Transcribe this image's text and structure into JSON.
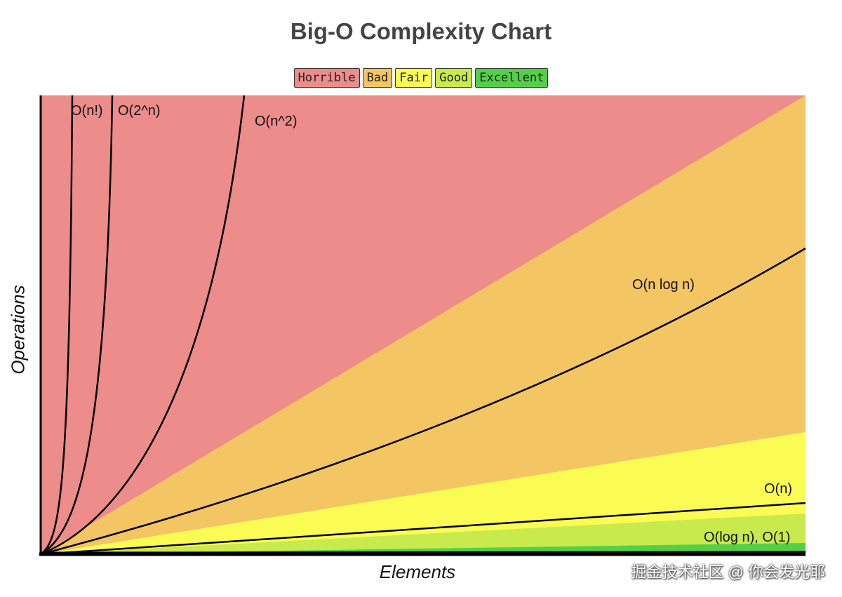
{
  "watermark": "掘金技术社区 @ 你会发光耶",
  "chart_data": {
    "type": "line",
    "title": "Big-O Complexity Chart",
    "xlabel": "Elements",
    "ylabel": "Operations",
    "grid": false,
    "legend_placement": "top-center",
    "legend": [
      {
        "label": "Horrible",
        "color": "#ec8c8b"
      },
      {
        "label": "Bad",
        "color": "#f3c563"
      },
      {
        "label": "Fair",
        "color": "#fafc54"
      },
      {
        "label": "Good",
        "color": "#c8ea4c"
      },
      {
        "label": "Excellent",
        "color": "#53d048"
      }
    ],
    "axis_color": "#000000",
    "curve_color": "#000000",
    "series": [
      {
        "name": "O(n!)",
        "label": "O(n!)"
      },
      {
        "name": "O(2^n)",
        "label": "O(2^n)"
      },
      {
        "name": "O(n^2)",
        "label": "O(n^2)"
      },
      {
        "name": "O(n log n)",
        "label": "O(n log n)"
      },
      {
        "name": "O(n)",
        "label": "O(n)"
      },
      {
        "name": "O(log n), O(1)",
        "label": "O(log n), O(1)"
      }
    ]
  }
}
